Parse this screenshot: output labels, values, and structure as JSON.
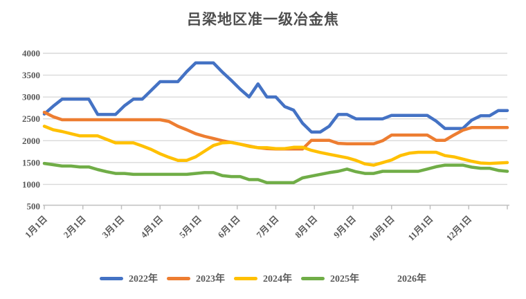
{
  "title": "吕梁地区准一级冶金焦",
  "colors": {
    "text": "#595959",
    "title_text": "#4d4d4d",
    "gridline": "#d9d9d9",
    "axis_line": "#bfbfbf",
    "background": "#ffffff"
  },
  "chart_data": {
    "type": "line",
    "title": "吕梁地区准一级冶金焦",
    "xlabel": "",
    "ylabel": "",
    "ylim": [
      500,
      4000
    ],
    "y_ticks": [
      4000,
      3500,
      3000,
      2500,
      2000,
      1500,
      1000,
      500
    ],
    "x_tick_labels": [
      "1月1日",
      "2月1日",
      "3月1日",
      "4月1日",
      "5月1日",
      "6月1日",
      "7月1日",
      "8月1日",
      "9月1日",
      "10月1日",
      "11月1日",
      "12月1日"
    ],
    "x_unit": "weekly points, Jan 1 – Dec 31",
    "grid": "horizontal",
    "legend_position": "bottom",
    "series": [
      {
        "name": "2022年",
        "color": "#4472C4",
        "values": [
          2610,
          2790,
          2950,
          2950,
          2950,
          2950,
          2600,
          2600,
          2600,
          2800,
          2950,
          2950,
          3150,
          3350,
          3350,
          3350,
          3580,
          3780,
          3780,
          3780,
          3570,
          3380,
          3180,
          3000,
          3300,
          3000,
          3000,
          2780,
          2700,
          2400,
          2200,
          2200,
          2330,
          2600,
          2600,
          2500,
          2500,
          2500,
          2500,
          2580,
          2580,
          2580,
          2580,
          2580,
          2450,
          2280,
          2280,
          2280,
          2470,
          2570,
          2570,
          2690,
          2690
        ]
      },
      {
        "name": "2023年",
        "color": "#ED7D31",
        "values": [
          2650,
          2550,
          2480,
          2480,
          2480,
          2480,
          2480,
          2480,
          2480,
          2480,
          2480,
          2480,
          2480,
          2480,
          2440,
          2330,
          2250,
          2160,
          2100,
          2050,
          2000,
          1960,
          1920,
          1880,
          1840,
          1820,
          1810,
          1810,
          1810,
          1810,
          2010,
          2010,
          2010,
          1940,
          1930,
          1930,
          1930,
          1930,
          2000,
          2130,
          2130,
          2130,
          2130,
          2130,
          2010,
          2010,
          2130,
          2240,
          2300,
          2300,
          2300,
          2300,
          2300
        ]
      },
      {
        "name": "2024年",
        "color": "#FFC000",
        "values": [
          2330,
          2250,
          2210,
          2160,
          2110,
          2110,
          2110,
          2030,
          1950,
          1950,
          1950,
          1880,
          1800,
          1700,
          1620,
          1550,
          1550,
          1630,
          1760,
          1890,
          1950,
          1960,
          1920,
          1870,
          1840,
          1840,
          1820,
          1820,
          1850,
          1850,
          1780,
          1730,
          1690,
          1650,
          1610,
          1550,
          1470,
          1440,
          1500,
          1560,
          1660,
          1715,
          1735,
          1735,
          1735,
          1660,
          1630,
          1580,
          1530,
          1490,
          1480,
          1490,
          1500
        ]
      },
      {
        "name": "2025年",
        "color": "#70AD47",
        "values": [
          1480,
          1450,
          1420,
          1420,
          1400,
          1400,
          1340,
          1290,
          1250,
          1250,
          1230,
          1230,
          1230,
          1230,
          1230,
          1230,
          1230,
          1250,
          1270,
          1270,
          1200,
          1180,
          1180,
          1110,
          1110,
          1040,
          1040,
          1040,
          1040,
          1150,
          1190,
          1230,
          1270,
          1300,
          1350,
          1290,
          1250,
          1250,
          1300,
          1300,
          1300,
          1300,
          1300,
          1350,
          1405,
          1440,
          1440,
          1440,
          1395,
          1370,
          1370,
          1320,
          1300
        ]
      },
      {
        "name": "2026年",
        "color": null,
        "values": []
      }
    ]
  },
  "legend": {
    "items": [
      "2022年",
      "2023年",
      "2024年",
      "2025年",
      "2026年"
    ]
  }
}
